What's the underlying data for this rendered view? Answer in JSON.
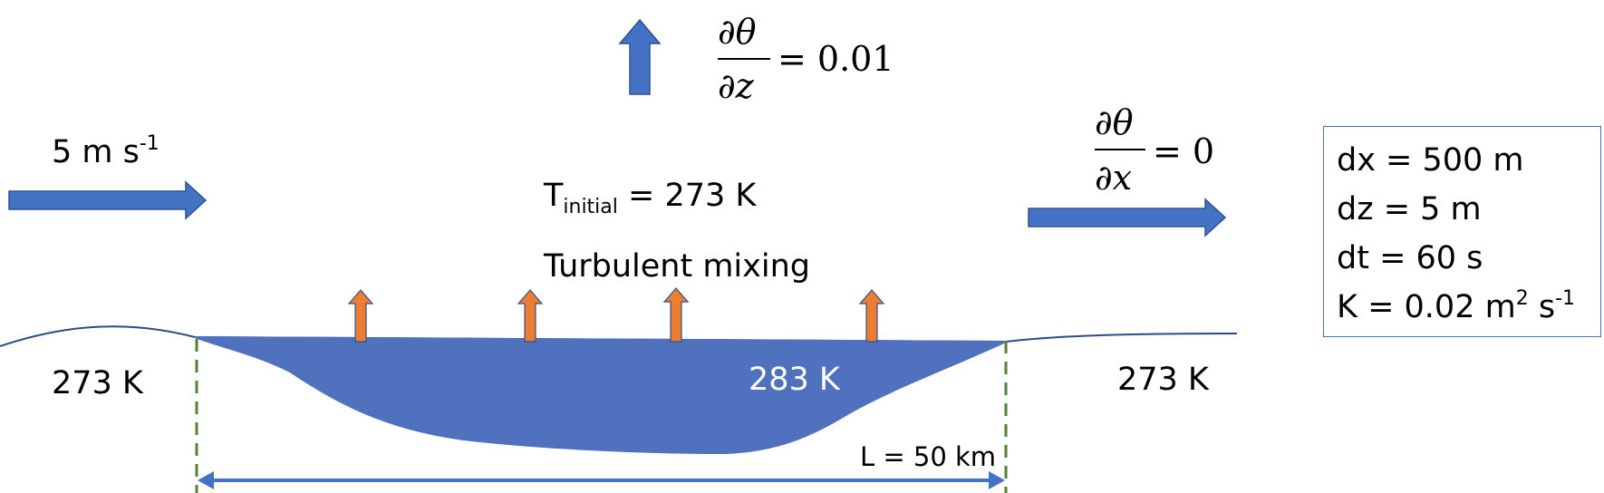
{
  "labels": {
    "wind_speed": "5 m s",
    "wind_speed_exp": "-1",
    "t_initial_main": "T",
    "t_initial_sub": "initial",
    "t_initial_value": " = 273 K",
    "mixing": "Turbulent mixing",
    "left_temp": "273 K",
    "right_temp": "273 K",
    "lake_temp": "283 K",
    "length": "L = 50 km"
  },
  "equations": {
    "vertical": {
      "numerator": "∂θ",
      "denominator": "∂z",
      "rhs": "= 0.01"
    },
    "horizontal": {
      "numerator": "∂θ",
      "denominator": "∂x",
      "rhs": "= 0"
    }
  },
  "params": {
    "dx": "dx = 500 m",
    "dz": "dz = 5 m",
    "dt": "dt = 60 s",
    "k_main": "K  = 0.02 m",
    "k_exp1": "2",
    "k_mid": " s",
    "k_exp2": "-1"
  },
  "colors": {
    "arrow_blue": "#4472c4",
    "lake_fill": "#4f71be",
    "flux_orange": "#ed7d31",
    "boundary_green": "#548235",
    "terrain_line": "#2f4a8a"
  }
}
